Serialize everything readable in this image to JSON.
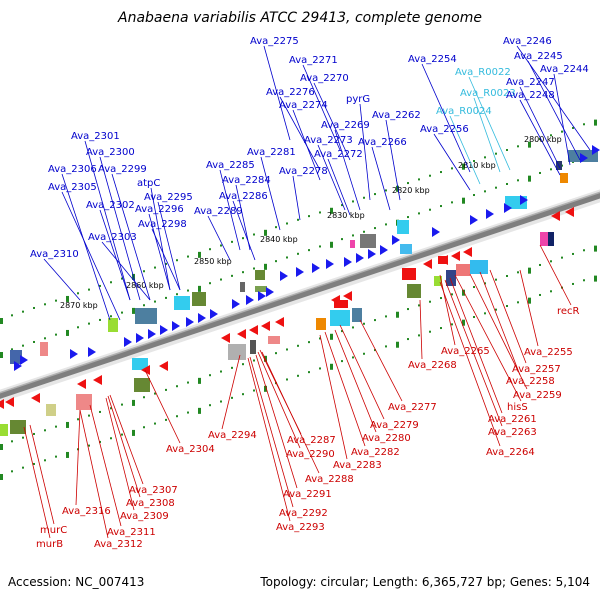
{
  "title": "Anabaena variabilis ATCC 29413, complete genome",
  "footer": {
    "accession": "Accession: NC_007413",
    "summary": "Topology: circular; Length: 6,365,727 bp; Genes: 5,104"
  },
  "kbp_labels": [
    "2800 kbp",
    "2810 kbp",
    "2820 kbp",
    "2830 kbp",
    "2840 kbp",
    "2850 kbp",
    "2860 kbp",
    "2870 kbp"
  ],
  "colors": {
    "forward_label": "#0000cc",
    "reverse_label": "#cc0000",
    "rna_label": "#33bbdd",
    "forward_arrow": "#1a1aee",
    "reverse_arrow": "#ee1111",
    "backbone": "#7f7f7f",
    "tick": "#228822"
  },
  "labels_forward": [
    "Ava_2275",
    "Ava_2246",
    "Ava_2271",
    "Ava_2245",
    "Ava_2254",
    "Ava_R0022",
    "Ava_2244",
    "Ava_2270",
    "Ava_2247",
    "Ava_2276",
    "Ava_R0023",
    "Ava_2248",
    "pyrG",
    "Ava_2274",
    "Ava_R0024",
    "Ava_2262",
    "Ava_2269",
    "Ava_2256",
    "Ava_2301",
    "Ava_2273",
    "Ava_2266",
    "Ava_2272",
    "Ava_2300",
    "Ava_2281",
    "Ava_2285",
    "Ava_2299",
    "Ava_2306",
    "Ava_2278",
    "atpC",
    "Ava_2284",
    "Ava_2305",
    "Ava_2295",
    "Ava_2286",
    "Ava_2302",
    "Ava_2296",
    "Ava_2289",
    "Ava_2298",
    "Ava_2303",
    "Ava_2310"
  ],
  "labels_reverse": [
    "recR",
    "Ava_2265",
    "Ava_2255",
    "Ava_2268",
    "Ava_2257",
    "Ava_2258",
    "Ava_2259",
    "Ava_2277",
    "hisS",
    "Ava_2261",
    "Ava_2279",
    "Ava_2263",
    "Ava_2294",
    "Ava_2287",
    "Ava_2280",
    "Ava_2282",
    "Ava_2264",
    "Ava_2304",
    "Ava_2290",
    "Ava_2283",
    "Ava_2288",
    "Ava_2307",
    "Ava_2291",
    "Ava_2308",
    "Ava_2316",
    "Ava_2309",
    "Ava_2292",
    "Ava_2293",
    "murC",
    "Ava_2311",
    "murB",
    "Ava_2312"
  ]
}
